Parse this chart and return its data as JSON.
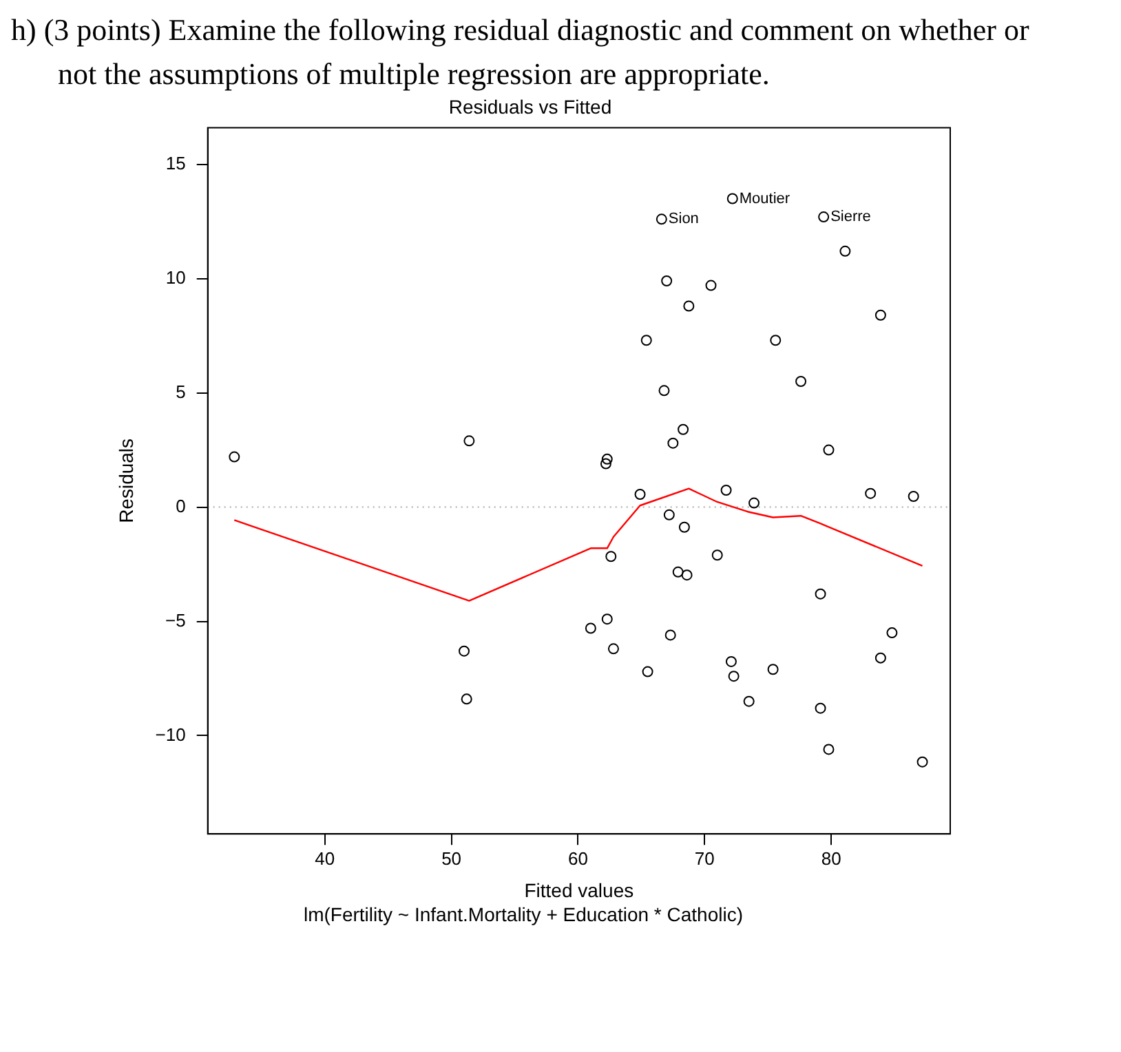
{
  "chart_data": {
    "type": "scatter",
    "title": "Residuals vs Fitted",
    "xlabel": "Fitted values",
    "ylabel": "Residuals",
    "annotations": [
      "h) (3 points) Examine the following residual diagnostic and comment on whether or not the assumptions of multiple regression are appropriate.",
      {
        "text": "Sion",
        "x": 66.6,
        "y": 12.6
      },
      {
        "text": "Moutier",
        "x": 72.2,
        "y": 13.5
      },
      {
        "text": "Sierre",
        "x": 79.4,
        "y": 12.7
      },
      "lm(Fertility ~ Infant.Mortality + Education * Catholic)"
    ],
    "xlim": [
      30.75,
      89.4
    ],
    "xticks": [
      40,
      50,
      60,
      70,
      80
    ],
    "ylim": [
      -14.3,
      16.6
    ],
    "yticks": [
      -10,
      -5,
      0,
      5,
      10,
      15
    ],
    "grid": false,
    "legend": false,
    "marker": "circle",
    "ref_lines": [
      {
        "axis": "y",
        "value": 0,
        "color": "#aaaaaa",
        "line_style": "dotted"
      }
    ],
    "series": [
      {
        "color": "#000000",
        "x": [
          32.85,
          51.4,
          51.0,
          51.2,
          66.6,
          72.2,
          79.4,
          81.1,
          67.0,
          70.5,
          68.75,
          83.9,
          65.4,
          75.6,
          77.6,
          66.8,
          68.3,
          67.5,
          79.8,
          62.3,
          62.2,
          64.9,
          71.7,
          73.9,
          83.1,
          86.5,
          67.2,
          68.4,
          62.6,
          71.0,
          67.9,
          68.6,
          79.15,
          61.0,
          62.3,
          84.8,
          67.3,
          62.8,
          83.9,
          72.1,
          72.3,
          65.5,
          75.4,
          73.5,
          79.15,
          79.8,
          87.2
        ],
        "values": [
          2.2,
          2.9,
          -6.3,
          -8.4,
          12.6,
          13.5,
          12.7,
          11.2,
          9.9,
          9.7,
          8.8,
          8.4,
          7.3,
          7.3,
          5.5,
          5.1,
          3.4,
          2.8,
          2.5,
          2.1,
          1.9,
          0.56,
          0.74,
          0.18,
          0.6,
          0.47,
          -0.34,
          -0.88,
          -2.16,
          -2.1,
          -2.84,
          -2.97,
          -3.8,
          -5.3,
          -4.9,
          -5.5,
          -5.6,
          -6.2,
          -6.6,
          -6.76,
          -7.4,
          -7.2,
          -7.1,
          -8.5,
          -8.8,
          -10.6,
          -11.15
        ]
      },
      {
        "type": "line",
        "color": "#ff0000",
        "marker": "none",
        "x": [
          32.85,
          51.4,
          61.0,
          62.3,
          62.8,
          64.9,
          68.75,
          70.9,
          73.4,
          75.4,
          77.6,
          79.15,
          87.2
        ],
        "values": [
          -0.57,
          -4.1,
          -1.8,
          -1.8,
          -1.3,
          0.07,
          0.81,
          0.25,
          -0.2,
          -0.45,
          -0.38,
          -0.72,
          -2.57
        ]
      }
    ]
  }
}
